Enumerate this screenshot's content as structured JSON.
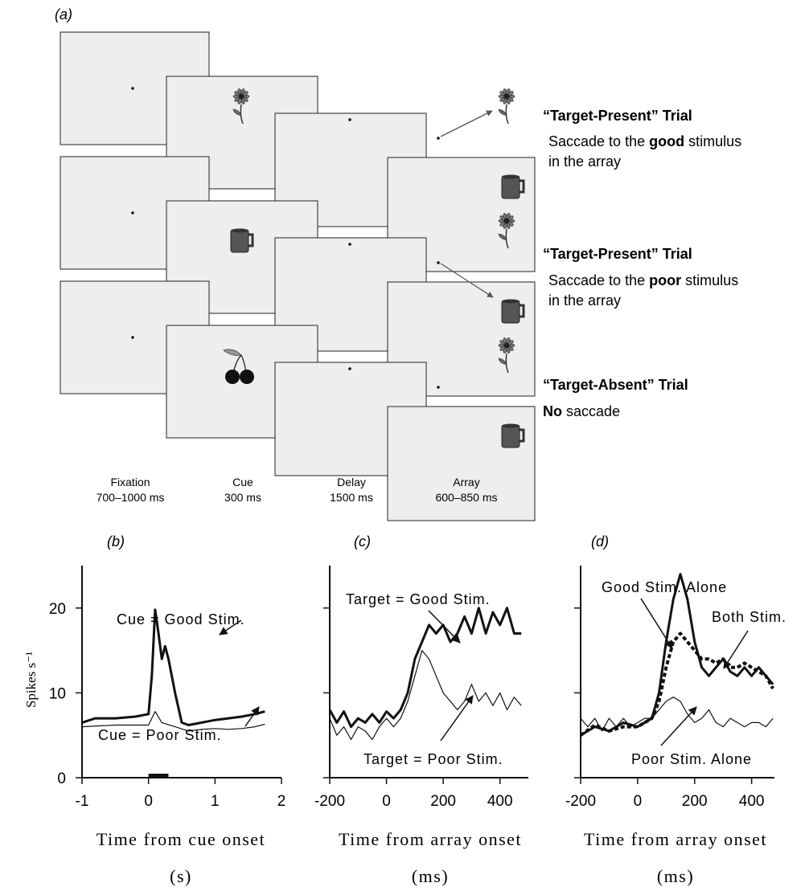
{
  "panel_a": {
    "label": "(a)",
    "trials": [
      {
        "title": "“Target-Present” Trial",
        "desc": [
          [
            {
              "t": "Saccade to the "
            },
            {
              "t": "good",
              "b": true
            },
            {
              "t": " stimulus"
            }
          ],
          [
            {
              "t": "in the array"
            }
          ]
        ]
      },
      {
        "title": "“Target-Present” Trial",
        "desc": [
          [
            {
              "t": "Saccade to the "
            },
            {
              "t": "poor",
              "b": true
            },
            {
              "t": " stimulus"
            }
          ],
          [
            {
              "t": "in the array"
            }
          ]
        ]
      },
      {
        "title": "“Target-Absent” Trial",
        "desc": [
          [
            {
              "t": "No",
              "b": true
            },
            {
              "t": " saccade"
            }
          ]
        ]
      }
    ],
    "stages": [
      {
        "name": "Fixation",
        "duration": "700–1000 ms"
      },
      {
        "name": "Cue",
        "duration": "300 ms"
      },
      {
        "name": "Delay",
        "duration": "1500 ms"
      },
      {
        "name": "Array",
        "duration": "600–850 ms"
      }
    ]
  },
  "chart_data": [
    {
      "type": "line",
      "title": "(b)",
      "ylabel": "Spikes s⁻¹",
      "xlabel": [
        "Time from cue onset",
        "(s)"
      ],
      "xlim": [
        -1,
        2
      ],
      "xticks": [
        -1,
        0,
        1,
        2
      ],
      "ylim": [
        0,
        25
      ],
      "yticks": [
        0,
        10,
        20
      ],
      "show_ytick_labels": true,
      "cue_period": [
        0,
        0.3
      ],
      "series": [
        {
          "name": "Cue = Good Stim.",
          "color": "#111111",
          "line_width": 3,
          "dashed": false,
          "x": [
            -1,
            -0.8,
            -0.5,
            -0.2,
            0,
            0.05,
            0.1,
            0.15,
            0.2,
            0.25,
            0.3,
            0.4,
            0.5,
            0.6,
            0.8,
            1.0,
            1.2,
            1.4,
            1.6,
            1.75
          ],
          "values": [
            6.5,
            7,
            7,
            7.2,
            7.5,
            12,
            19.8,
            17,
            14,
            15.5,
            14,
            10,
            6.5,
            6.2,
            6.5,
            6.8,
            7,
            7.2,
            7.5,
            7.8
          ]
        },
        {
          "name": "Cue = Poor Stim.",
          "color": "#111111",
          "line_width": 1.2,
          "dashed": false,
          "x": [
            -1,
            -0.5,
            0,
            0.1,
            0.2,
            0.4,
            0.6,
            0.8,
            1.0,
            1.2,
            1.4,
            1.6,
            1.75
          ],
          "values": [
            6,
            6.2,
            6.2,
            7.8,
            6.5,
            6,
            5.5,
            5.7,
            5.8,
            5.7,
            5.8,
            6,
            6.3
          ]
        }
      ]
    },
    {
      "type": "line",
      "title": "(c)",
      "xlabel": [
        "Time from array onset",
        "(ms)"
      ],
      "xlim": [
        -200,
        500
      ],
      "xticks": [
        -200,
        0,
        200,
        400
      ],
      "ylim": [
        0,
        25
      ],
      "yticks": [
        0,
        10,
        20
      ],
      "show_ytick_labels": false,
      "series": [
        {
          "name": "Target = Good Stim.",
          "color": "#111111",
          "line_width": 3,
          "dashed": false,
          "x": [
            -200,
            -175,
            -150,
            -125,
            -100,
            -75,
            -50,
            -25,
            0,
            25,
            50,
            75,
            100,
            125,
            150,
            175,
            200,
            225,
            250,
            275,
            300,
            325,
            350,
            375,
            400,
            425,
            450,
            475
          ],
          "values": [
            8,
            6.5,
            7.8,
            6,
            7,
            6.5,
            7.5,
            6.5,
            7.8,
            7,
            8,
            10,
            14,
            16,
            18,
            17,
            18,
            16,
            17,
            19,
            17,
            20,
            17,
            19.5,
            18,
            20,
            17,
            17
          ]
        },
        {
          "name": "Target = Poor Stim.",
          "color": "#111111",
          "line_width": 1.2,
          "dashed": false,
          "x": [
            -200,
            -175,
            -150,
            -125,
            -100,
            -75,
            -50,
            -25,
            0,
            25,
            50,
            75,
            100,
            125,
            150,
            175,
            200,
            225,
            250,
            275,
            300,
            325,
            350,
            375,
            400,
            425,
            450,
            475
          ],
          "values": [
            7,
            5,
            6,
            4.5,
            6,
            5.5,
            4.5,
            6,
            7,
            6,
            7,
            9,
            12,
            15,
            14,
            12,
            10,
            9,
            8,
            9,
            11,
            9,
            10,
            8.5,
            10,
            8,
            9.5,
            8.5
          ]
        }
      ]
    },
    {
      "type": "line",
      "title": "(d)",
      "xlabel": [
        "Time from array onset",
        "(ms)"
      ],
      "xlim": [
        -200,
        480
      ],
      "xticks": [
        -200,
        0,
        200,
        400
      ],
      "ylim": [
        0,
        25
      ],
      "yticks": [
        0,
        10,
        20
      ],
      "show_ytick_labels": false,
      "series": [
        {
          "name": "Good Stim. Alone",
          "color": "#111111",
          "line_width": 3,
          "dashed": false,
          "x": [
            -200,
            -150,
            -100,
            -50,
            0,
            50,
            75,
            100,
            125,
            150,
            175,
            200,
            225,
            250,
            275,
            300,
            325,
            350,
            375,
            400,
            425,
            450,
            475
          ],
          "values": [
            5,
            6,
            5.5,
            6.5,
            6,
            7,
            10,
            16,
            21,
            24,
            21,
            16,
            13,
            12,
            13,
            14,
            12.5,
            12,
            13,
            12,
            13,
            12,
            11
          ]
        },
        {
          "name": "Both Stim.",
          "color": "#111111",
          "line_width": 4,
          "dashed": true,
          "x": [
            -200,
            -150,
            -100,
            -50,
            0,
            50,
            75,
            100,
            125,
            150,
            175,
            200,
            225,
            250,
            275,
            300,
            325,
            350,
            375,
            400,
            425,
            450,
            475
          ],
          "values": [
            5,
            6.2,
            5.5,
            6,
            6,
            7,
            9,
            13,
            16,
            17,
            16,
            15,
            14,
            14,
            13.5,
            14,
            13,
            13,
            13.5,
            13,
            12.5,
            12,
            10.5
          ]
        },
        {
          "name": "Poor Stim. Alone",
          "color": "#111111",
          "line_width": 1.2,
          "dashed": false,
          "x": [
            -200,
            -175,
            -150,
            -125,
            -100,
            -75,
            -50,
            -25,
            0,
            25,
            50,
            75,
            100,
            125,
            150,
            175,
            200,
            225,
            250,
            275,
            300,
            325,
            350,
            375,
            400,
            425,
            450,
            475
          ],
          "values": [
            7,
            6,
            7,
            5.5,
            7,
            6,
            7,
            6,
            6.5,
            7,
            7,
            8,
            9,
            9.5,
            9,
            7.5,
            6.5,
            7,
            8,
            6.5,
            6,
            7,
            6.5,
            6,
            6.5,
            6.5,
            6,
            7
          ]
        }
      ]
    }
  ]
}
